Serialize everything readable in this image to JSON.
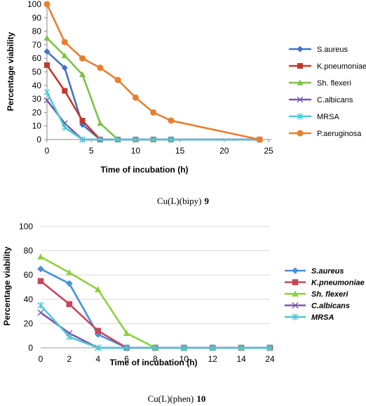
{
  "chart_data": [
    {
      "type": "line",
      "caption": "Cu(L)(bipy)",
      "caption_number": "9",
      "xlabel": "Time of incubation (h)",
      "ylabel": "Percentage viability",
      "xlim": [
        0,
        25
      ],
      "ylim": [
        0,
        100
      ],
      "x_ticks": [
        "0",
        "5",
        "10",
        "15",
        "20",
        "25"
      ],
      "y_ticks": [
        "0",
        "10",
        "20",
        "30",
        "40",
        "50",
        "60",
        "70",
        "80",
        "90",
        "100"
      ],
      "grid": false,
      "legend_position": "right",
      "series": [
        {
          "name": "S.aureus",
          "color": "#4472C4",
          "marker": "diamond",
          "x": [
            0,
            2,
            4,
            6,
            8,
            10,
            12,
            14,
            24
          ],
          "y": [
            65,
            53,
            11,
            0,
            0,
            0,
            0,
            0,
            0
          ]
        },
        {
          "name": "K.pneumoniae",
          "color": "#C0392B",
          "marker": "square",
          "x": [
            0,
            2,
            4,
            6,
            8,
            10,
            12,
            14,
            24
          ],
          "y": [
            55,
            36,
            14,
            0,
            0,
            0,
            0,
            0,
            0
          ]
        },
        {
          "name": "Sh. flexeri",
          "color": "#7CC242",
          "marker": "triangle",
          "x": [
            0,
            2,
            4,
            6,
            8,
            10,
            12,
            14,
            24
          ],
          "y": [
            75,
            62,
            48,
            12,
            0,
            0,
            0,
            0,
            0
          ]
        },
        {
          "name": "C.albicans",
          "color": "#7A58A8",
          "marker": "x",
          "x": [
            0,
            2,
            4,
            6,
            8,
            10,
            12,
            14,
            24
          ],
          "y": [
            29,
            12,
            0,
            0,
            0,
            0,
            0,
            0,
            0
          ]
        },
        {
          "name": "MRSA",
          "color": "#4BC8D6",
          "marker": "asterisk",
          "x": [
            0,
            2,
            4,
            6,
            8,
            10,
            12,
            14,
            24
          ],
          "y": [
            35,
            9,
            0,
            0,
            0,
            0,
            0,
            0,
            0
          ]
        },
        {
          "name": "P.aeruginosa",
          "color": "#E87F2E",
          "marker": "circle",
          "x": [
            0,
            2,
            4,
            6,
            8,
            10,
            12,
            14,
            24
          ],
          "y": [
            100,
            72,
            60,
            53,
            44,
            31,
            20,
            14,
            0
          ]
        }
      ]
    },
    {
      "type": "line",
      "caption": "Cu(L)(phen)",
      "caption_number": "10",
      "xlabel": "Time of incubation (h)",
      "ylabel": "Percentage viability",
      "categories": [
        "0",
        "2",
        "4",
        "6",
        "8",
        "10",
        "12",
        "14",
        "24"
      ],
      "ylim": [
        0,
        100
      ],
      "y_ticks": [
        "0",
        "20",
        "40",
        "60",
        "80",
        "100"
      ],
      "grid": true,
      "legend_position": "right",
      "series": [
        {
          "name": "S.aureus",
          "color": "#4A90D9",
          "marker": "diamond",
          "values": [
            65,
            53,
            11,
            0,
            0,
            0,
            0,
            0,
            0
          ]
        },
        {
          "name": "K.pneumoniae",
          "color": "#C8465B",
          "marker": "square",
          "values": [
            55,
            36,
            14,
            0,
            0,
            0,
            0,
            0,
            0
          ]
        },
        {
          "name": "Sh. flexeri",
          "color": "#8ED13E",
          "marker": "triangle",
          "values": [
            75,
            62,
            48,
            12,
            0,
            0,
            0,
            0,
            0
          ]
        },
        {
          "name": "C.albicans",
          "color": "#7A58A8",
          "marker": "x",
          "values": [
            29,
            12,
            0,
            0,
            0,
            0,
            0,
            0,
            0
          ]
        },
        {
          "name": "MRSA",
          "color": "#4BC8D6",
          "marker": "asterisk",
          "values": [
            35,
            9,
            0,
            0,
            0,
            0,
            0,
            0,
            0
          ]
        }
      ]
    }
  ]
}
